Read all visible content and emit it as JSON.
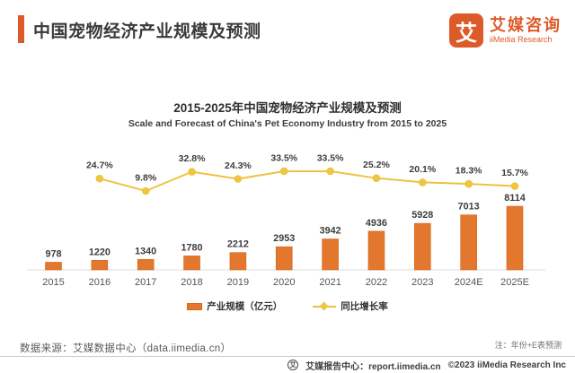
{
  "header": {
    "title": "中国宠物经济产业规模及预测",
    "logo": {
      "mark": "艾",
      "name_cn": "艾媒咨询",
      "name_en": "iiMedia Research"
    }
  },
  "chart_data": {
    "type": "bar+line",
    "title": "2015-2025年中国宠物经济产业规模及预测",
    "subtitle": "Scale and Forecast of China's Pet Economy Industry from 2015 to 2025",
    "categories": [
      "2015",
      "2016",
      "2017",
      "2018",
      "2019",
      "2020",
      "2021",
      "2022",
      "2023",
      "2024E",
      "2025E"
    ],
    "series": [
      {
        "name": "产业规模（亿元）",
        "type": "bar",
        "values": [
          978,
          1220,
          1340,
          1780,
          2212,
          2953,
          3942,
          4936,
          5928,
          7013,
          8114
        ]
      },
      {
        "name": "同比增长率",
        "type": "line",
        "unit": "%",
        "values": [
          null,
          24.7,
          9.8,
          32.8,
          24.3,
          33.5,
          33.5,
          25.2,
          20.1,
          18.3,
          15.7
        ]
      }
    ],
    "legend_position": "bottom",
    "grid": false,
    "bar_axis_range": [
      0,
      8500
    ],
    "line_axis_range": [
      0,
      40
    ]
  },
  "colors": {
    "brand_orange": "#DD5B28",
    "bar_fill": "#E2772D",
    "bar_stroke": "#D2691F",
    "line_yellow": "#EDC23F",
    "dot_yellow": "#EFC643",
    "label_dark": "#3d3d3d",
    "axis_line": "#dcdcdc",
    "year_label": "#555555"
  },
  "footer": {
    "source": "数据来源：艾媒数据中心（data.iimedia.cn）",
    "note": "注：年份+E表预测",
    "badge_glyph": "艾",
    "report_center": "艾媒报告中心：report.iimedia.cn",
    "copyright": "©2023  iiMedia Research  Inc"
  }
}
